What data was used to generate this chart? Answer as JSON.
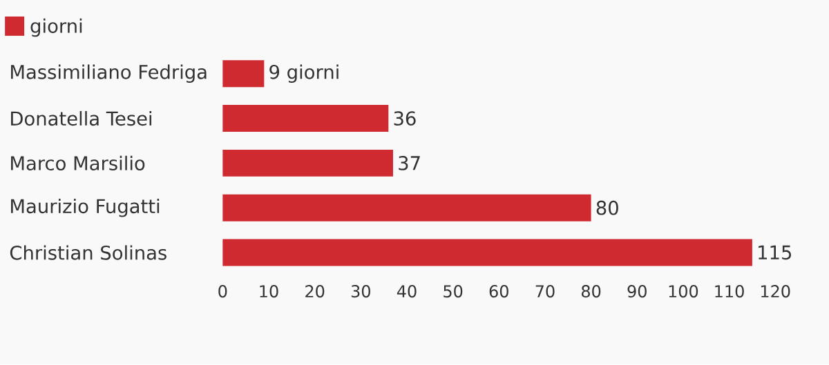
{
  "chart_data": {
    "type": "bar",
    "orientation": "horizontal",
    "categories": [
      "Massimiliano Fedriga",
      "Donatella Tesei",
      "Marco Marsilio",
      "Maurizio Fugatti",
      "Christian Solinas"
    ],
    "series": [
      {
        "name": "giorni",
        "color": "#cf2a30",
        "values": [
          9,
          36,
          37,
          80,
          115
        ],
        "value_labels": [
          "9 giorni",
          "36",
          "37",
          "80",
          "115"
        ]
      }
    ],
    "xlim": [
      0,
      120
    ],
    "xticks": [
      0,
      10,
      20,
      30,
      40,
      50,
      60,
      70,
      80,
      90,
      100,
      110,
      120
    ],
    "legend": "top left"
  }
}
